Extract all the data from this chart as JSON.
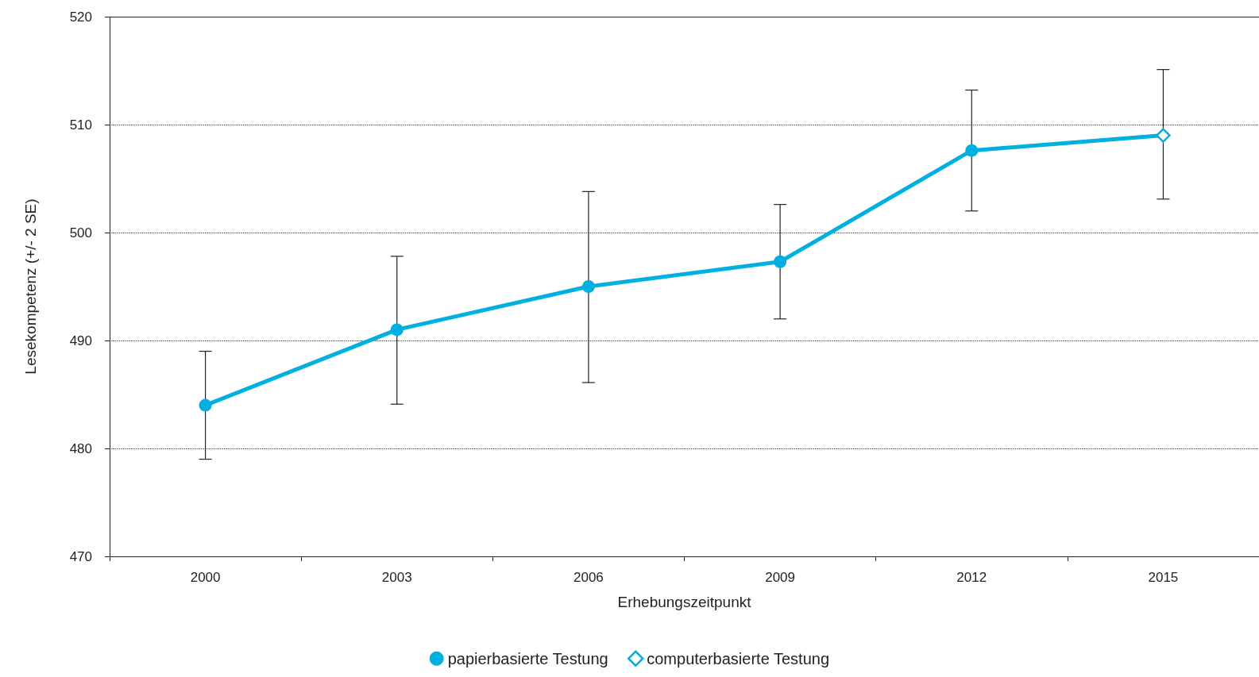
{
  "chart_data": {
    "type": "line",
    "xlabel": "Erhebungszeitpunkt",
    "ylabel": "Lesekompetenz (+/- 2 SE)",
    "categories": [
      "2000",
      "2003",
      "2006",
      "2009",
      "2012",
      "2015"
    ],
    "series": [
      {
        "name": "papierbasierte Testung",
        "color": "#00b0e0",
        "marker": "circle",
        "values": [
          484,
          491,
          495,
          497.3,
          507.6,
          null
        ],
        "errors": [
          [
            479,
            489
          ],
          [
            484.1,
            497.8
          ],
          [
            486.1,
            503.8
          ],
          [
            492,
            502.6
          ],
          [
            502,
            513.2
          ],
          null
        ]
      },
      {
        "name": "computerbasierte Testung",
        "color": "#00b0e0",
        "marker": "diamond",
        "values": [
          null,
          null,
          null,
          null,
          507.6,
          509
        ],
        "errors": [
          null,
          null,
          null,
          null,
          null,
          [
            503.1,
            515.1
          ]
        ]
      }
    ],
    "ylim": [
      470,
      520
    ],
    "yticks": [
      470,
      480,
      490,
      500,
      510,
      520
    ],
    "grid": "y",
    "legend": "bottom",
    "line_style": "solid"
  }
}
